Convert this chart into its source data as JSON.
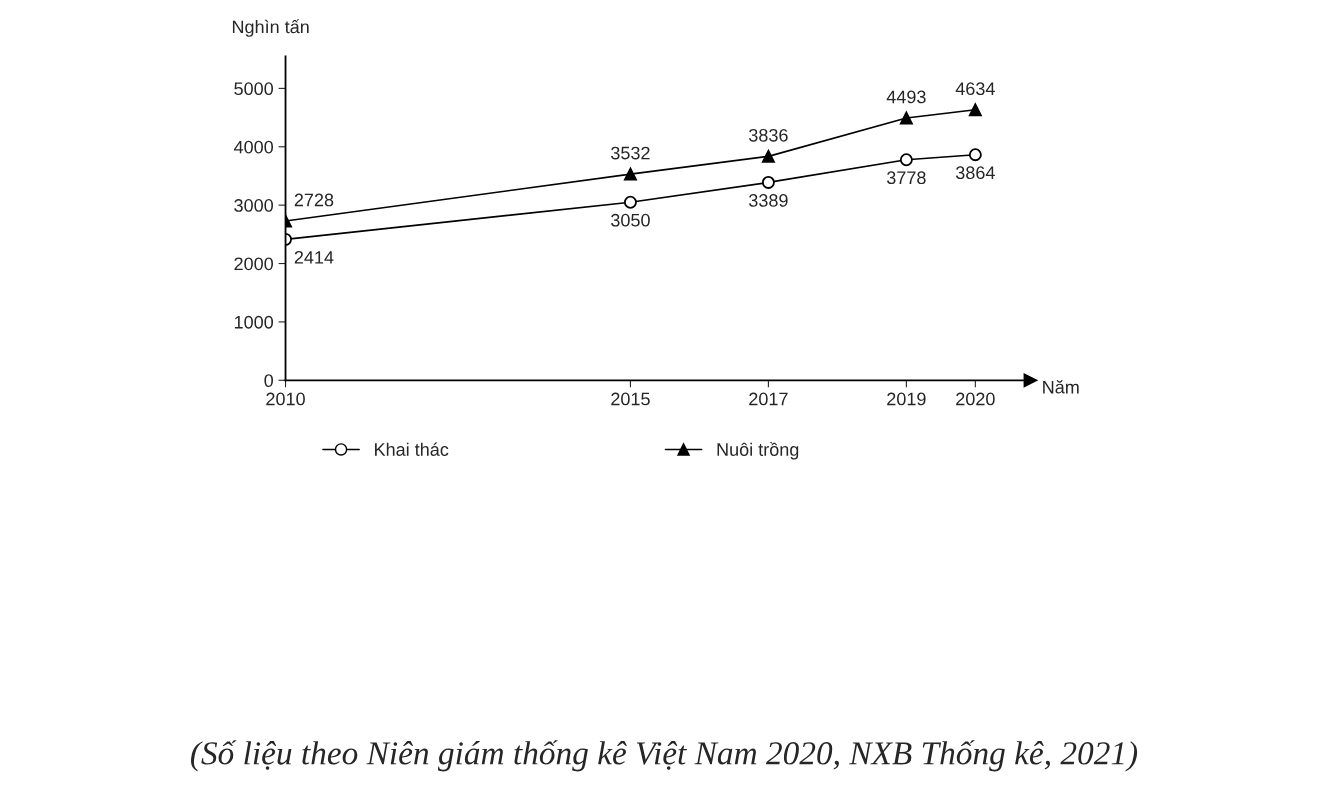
{
  "chart_data": {
    "type": "line",
    "ylabel": "Nghìn tấn",
    "xlabel": "Năm",
    "x": [
      2010,
      2015,
      2017,
      2019,
      2020
    ],
    "series": [
      {
        "name": "Khai thác",
        "color": "#000000",
        "marker": "circle",
        "values": [
          2414,
          3050,
          3389,
          3778,
          3864
        ]
      },
      {
        "name": "Nuôi trồng",
        "color": "#000000",
        "marker": "triangle",
        "values": [
          2728,
          3532,
          3836,
          4493,
          4634
        ]
      }
    ],
    "xlim": [
      2010,
      2020.8
    ],
    "ylim": [
      0,
      5550
    ],
    "xticks": [
      2010,
      2015,
      2017,
      2019,
      2020
    ],
    "yticks": [
      0,
      1000,
      2000,
      3000,
      4000,
      5000
    ],
    "data_labels": true,
    "legend": "bottom",
    "annotations": [
      "(Số liệu theo Niên giám thống kê Việt Nam 2020, NXB Thống kê, 2021)"
    ]
  }
}
